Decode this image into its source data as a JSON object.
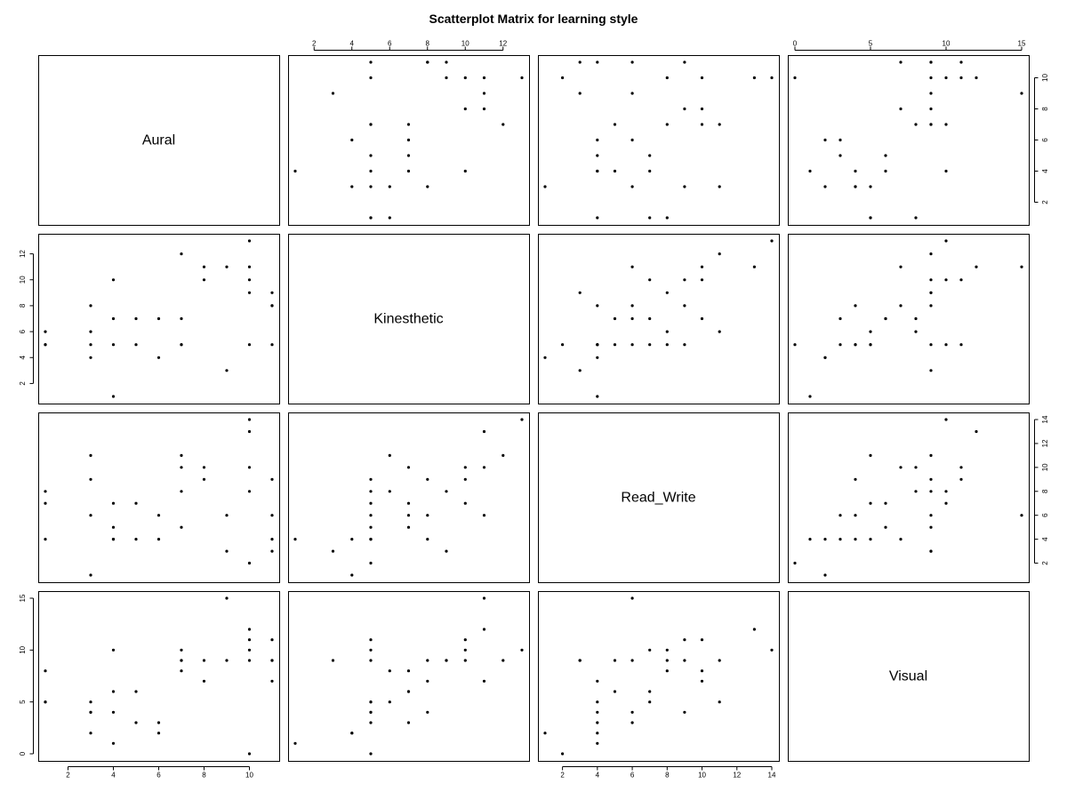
{
  "chart_data": {
    "type": "scatter",
    "title": "Scatterplot Matrix for learning style",
    "variables": [
      "Aural",
      "Kinesthetic",
      "Read_Write",
      "Visual"
    ],
    "ranges": {
      "Aural": [
        1,
        11
      ],
      "Kinesthetic": [
        1,
        13
      ],
      "Read_Write": [
        1,
        14
      ],
      "Visual": [
        0,
        15
      ]
    },
    "ticks": {
      "Aural": [
        2,
        4,
        6,
        8,
        10
      ],
      "Kinesthetic": [
        2,
        4,
        6,
        8,
        10,
        12
      ],
      "Read_Write": [
        2,
        4,
        6,
        8,
        10,
        12,
        14
      ],
      "Visual": [
        0,
        5,
        10,
        15
      ]
    },
    "ticks_top": {
      "Kinesthetic": [
        2,
        4,
        6,
        8,
        10,
        12
      ],
      "Visual": [
        0,
        5,
        10,
        15
      ]
    },
    "observations": [
      [
        1,
        5,
        7,
        5
      ],
      [
        1,
        6,
        8,
        8
      ],
      [
        1,
        5,
        4,
        5
      ],
      [
        3,
        8,
        9,
        4
      ],
      [
        3,
        6,
        11,
        5
      ],
      [
        3,
        5,
        6,
        4
      ],
      [
        3,
        4,
        1,
        2
      ],
      [
        4,
        10,
        7,
        10
      ],
      [
        4,
        7,
        5,
        6
      ],
      [
        4,
        5,
        4,
        4
      ],
      [
        4,
        1,
        4,
        1
      ],
      [
        5,
        7,
        7,
        6
      ],
      [
        5,
        5,
        4,
        3
      ],
      [
        6,
        7,
        6,
        3
      ],
      [
        6,
        4,
        4,
        2
      ],
      [
        7,
        12,
        11,
        9
      ],
      [
        7,
        7,
        10,
        8
      ],
      [
        7,
        5,
        5,
        9
      ],
      [
        7,
        5,
        8,
        10
      ],
      [
        8,
        11,
        10,
        7
      ],
      [
        8,
        10,
        9,
        9
      ],
      [
        9,
        11,
        6,
        15
      ],
      [
        9,
        3,
        3,
        9
      ],
      [
        10,
        13,
        14,
        10
      ],
      [
        10,
        11,
        13,
        12
      ],
      [
        10,
        10,
        10,
        11
      ],
      [
        10,
        9,
        8,
        9
      ],
      [
        10,
        5,
        2,
        0
      ],
      [
        11,
        8,
        4,
        7
      ],
      [
        11,
        9,
        3,
        9
      ],
      [
        11,
        5,
        9,
        11
      ],
      [
        11,
        8,
        6,
        9
      ]
    ]
  }
}
